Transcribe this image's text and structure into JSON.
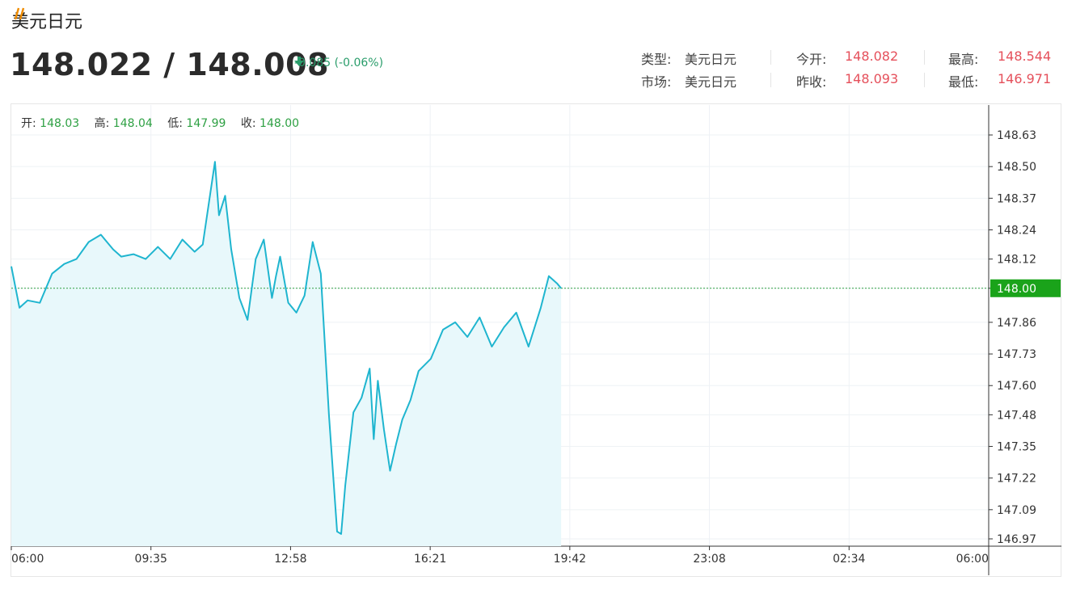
{
  "header": {
    "title": "美元日元",
    "colors": {
      "accent": "#f08c00",
      "up": "#2ea043",
      "down": "#e5505b"
    }
  },
  "quote": {
    "bid_ask": "148.022 / 148.008",
    "change": "-0.085 (-0.06%)",
    "direction_icon": "down-arrow-icon"
  },
  "stats": {
    "type_label": "类型:",
    "type_value": "美元日元",
    "market_label": "市场:",
    "market_value": "美元日元",
    "open_label": "今开:",
    "open_value": "148.082",
    "prev_close_label": "昨收:",
    "prev_close_value": "148.093",
    "high_label": "最高:",
    "high_value": "148.544",
    "low_label": "最低:",
    "low_value": "146.971"
  },
  "ohlc": {
    "open_label": "开:",
    "open_value": "148.03",
    "high_label": "高:",
    "high_value": "148.04",
    "low_label": "低:",
    "low_value": "147.99",
    "close_label": "收:",
    "close_value": "148.00"
  },
  "chart_data": {
    "type": "area",
    "title": "",
    "xlabel": "",
    "ylabel": "",
    "x_ticks": [
      "06:00",
      "09:35",
      "12:58",
      "16:21",
      "19:42",
      "23:08",
      "02:34",
      "06:00"
    ],
    "y_ticks": [
      "148.63",
      "148.50",
      "148.37",
      "148.24",
      "148.12",
      "148.00",
      "147.86",
      "147.73",
      "147.60",
      "147.48",
      "147.35",
      "147.22",
      "147.09",
      "146.97"
    ],
    "ylim": [
      146.94,
      148.66
    ],
    "session_hours": 24,
    "current_price_label": "148.00",
    "current_price": 148.0,
    "grid": true,
    "series": [
      {
        "x_hours": [
          0,
          0.2,
          0.4,
          0.7,
          1.0,
          1.3,
          1.6,
          1.9,
          2.2,
          2.5,
          2.7,
          3.0,
          3.3,
          3.6,
          3.9,
          4.2,
          4.5,
          4.7,
          5.0,
          5.1,
          5.25,
          5.4,
          5.6,
          5.8,
          6.0,
          6.2,
          6.4,
          6.5,
          6.6,
          6.8,
          7.0,
          7.2,
          7.4,
          7.6,
          7.8,
          8.0,
          8.1,
          8.2,
          8.4,
          8.6,
          8.8,
          8.9,
          9.0,
          9.15,
          9.3,
          9.45,
          9.6,
          9.8,
          10.0,
          10.3,
          10.6,
          10.9,
          11.2,
          11.5,
          11.8,
          12.1,
          12.4,
          12.7,
          13.0,
          13.2,
          13.4,
          13.5
        ],
        "values": [
          148.09,
          147.92,
          147.95,
          147.94,
          148.06,
          148.1,
          148.12,
          148.19,
          148.22,
          148.16,
          148.13,
          148.14,
          148.12,
          148.17,
          148.12,
          148.2,
          148.15,
          148.18,
          148.52,
          148.3,
          148.38,
          148.16,
          147.96,
          147.87,
          148.12,
          148.2,
          147.96,
          148.05,
          148.13,
          147.94,
          147.9,
          147.97,
          148.19,
          148.06,
          147.48,
          147.0,
          146.99,
          147.19,
          147.49,
          147.55,
          147.67,
          147.38,
          147.62,
          147.42,
          147.25,
          147.36,
          147.46,
          147.54,
          147.66,
          147.71,
          147.83,
          147.86,
          147.8,
          147.88,
          147.76,
          147.84,
          147.9,
          147.76,
          147.92,
          148.05,
          148.02,
          148.0
        ]
      }
    ]
  }
}
